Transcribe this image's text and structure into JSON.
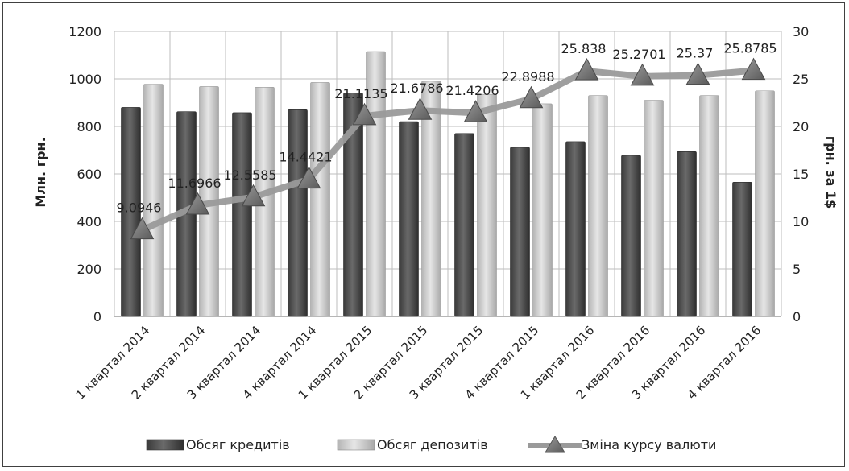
{
  "chart_data": {
    "type": "bar",
    "categories": [
      "1 квартал 2014",
      "2 квартал 2014",
      "3 квартал 2014",
      "4 квартал 2014",
      "1 квартал 2015",
      "2 квартал 2015",
      "3 квартал 2015",
      "4 квартал 2015",
      "1 квартал 2016",
      "2 квартал 2016",
      "3 квартал 2016",
      "4 квартал 2016"
    ],
    "series": [
      {
        "name": "Обсяг кредитів",
        "type": "bar",
        "axis": "left",
        "color": "#505050",
        "values": [
          880,
          862,
          858,
          870,
          940,
          820,
          770,
          712,
          736,
          678,
          694,
          565
        ]
      },
      {
        "name": "Обсяг депозитів",
        "type": "bar",
        "axis": "left",
        "color": "#c8c8c8",
        "values": [
          978,
          968,
          965,
          985,
          1115,
          990,
          935,
          895,
          930,
          910,
          930,
          950
        ]
      },
      {
        "name": "Зміна курсу валюти",
        "type": "line",
        "axis": "right",
        "color": "#909090",
        "values": [
          9.0946,
          11.6966,
          12.5585,
          14.4421,
          21.1135,
          21.6786,
          21.4206,
          22.8988,
          25.838,
          25.2701,
          25.37,
          25.8785
        ],
        "labels": [
          "9.0946",
          "11.6966",
          "12.5585",
          "14.4421",
          "21.1135",
          "21.6786",
          "21.4206",
          "22.8988",
          "25.838",
          "25.2701",
          "25.37",
          "25.8785"
        ]
      }
    ],
    "ylabel": "Млн. грн.",
    "y2label": "грн. за 1$",
    "ylim": [
      0,
      1200
    ],
    "y2lim": [
      0,
      30
    ],
    "yticks": [
      "0",
      "200",
      "400",
      "600",
      "800",
      "1000",
      "1200"
    ],
    "y2ticks": [
      "0",
      "5",
      "10",
      "15",
      "20",
      "25",
      "30"
    ],
    "grid": true,
    "legend": "bottom"
  }
}
